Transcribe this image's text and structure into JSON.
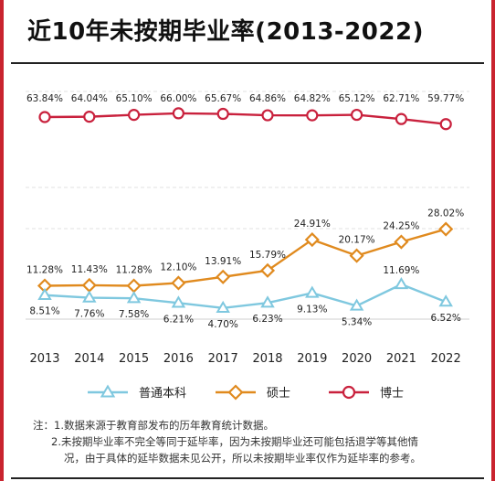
{
  "title": "近10年未按期毕业率(2013-2022)",
  "notes": [
    "注：1.数据来源于教育部发布的历年教育统计数据。",
    "2.未按期毕业率不完全等同于延毕率，因为未按期毕业还可能包括退学等其他情",
    "况，由于具体的延毕数据未见公开，所以未按期毕业率仅作为延毕率的参考。"
  ],
  "colors": {
    "undergrad": "#7fc8df",
    "master": "#e08a1e",
    "phd": "#c9213d",
    "frame": "#c9232f"
  },
  "chart_data": {
    "type": "line",
    "categories": [
      "2013",
      "2014",
      "2015",
      "2016",
      "2017",
      "2018",
      "2019",
      "2020",
      "2021",
      "2022"
    ],
    "series": [
      {
        "name": "普通本科",
        "marker": "triangle",
        "values": [
          8.51,
          7.76,
          7.58,
          6.21,
          4.7,
          6.23,
          9.13,
          5.34,
          11.69,
          6.52
        ],
        "labels": [
          "8.51%",
          "7.76%",
          "7.58%",
          "6.21%",
          "4.70%",
          "6.23%",
          "9.13%",
          "5.34%",
          "11.69%",
          "6.52%"
        ]
      },
      {
        "name": "硕士",
        "marker": "diamond",
        "values": [
          11.28,
          11.43,
          11.28,
          12.1,
          13.91,
          15.79,
          24.91,
          20.17,
          24.25,
          28.02
        ],
        "labels": [
          "11.28%",
          "11.43%",
          "11.28%",
          "12.10%",
          "13.91%",
          "15.79%",
          "24.91%",
          "20.17%",
          "24.25%",
          "28.02%"
        ]
      },
      {
        "name": "博士",
        "marker": "circle",
        "values": [
          63.84,
          64.04,
          65.1,
          66.0,
          65.67,
          64.86,
          64.82,
          65.12,
          62.71,
          59.77
        ],
        "labels": [
          "63.84%",
          "64.04%",
          "65.10%",
          "66.00%",
          "65.67%",
          "64.86%",
          "64.82%",
          "65.12%",
          "62.71%",
          "59.77%"
        ]
      }
    ],
    "legend_position": "bottom",
    "grid": "dashed horizontal"
  }
}
